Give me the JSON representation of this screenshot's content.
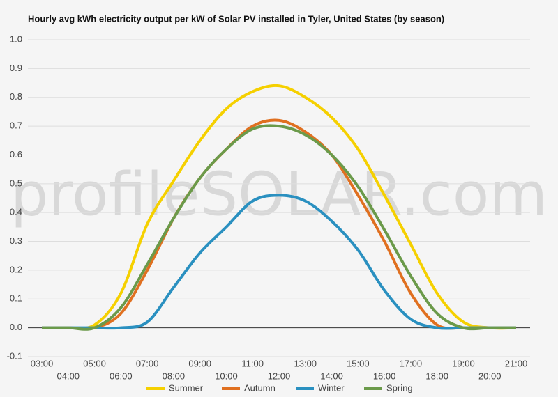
{
  "chart_data": {
    "type": "line",
    "title": "Hourly avg kWh electricity output per kW of Solar PV installed in Tyler, United States (by season)",
    "watermark": "profileSOLAR.com",
    "categories": [
      "03:00",
      "04:00",
      "05:00",
      "06:00",
      "07:00",
      "08:00",
      "09:00",
      "10:00",
      "11:00",
      "12:00",
      "13:00",
      "14:00",
      "15:00",
      "16:00",
      "17:00",
      "18:00",
      "19:00",
      "20:00",
      "21:00"
    ],
    "series": [
      {
        "name": "Summer",
        "color": "#f5d000",
        "values": [
          0,
          0,
          0.01,
          0.12,
          0.36,
          0.51,
          0.65,
          0.76,
          0.82,
          0.84,
          0.8,
          0.73,
          0.62,
          0.46,
          0.29,
          0.12,
          0.02,
          0,
          0
        ]
      },
      {
        "name": "Autumn",
        "color": "#e07020",
        "values": [
          0,
          0,
          0,
          0.05,
          0.2,
          0.38,
          0.52,
          0.62,
          0.7,
          0.72,
          0.68,
          0.6,
          0.46,
          0.3,
          0.12,
          0.01,
          0,
          0,
          0
        ]
      },
      {
        "name": "Winter",
        "color": "#2a90c0",
        "values": [
          0,
          0,
          0,
          0,
          0.02,
          0.14,
          0.26,
          0.35,
          0.44,
          0.46,
          0.44,
          0.37,
          0.27,
          0.13,
          0.03,
          0,
          0,
          0,
          0
        ]
      },
      {
        "name": "Spring",
        "color": "#6b9a4a",
        "values": [
          0,
          0,
          0,
          0.07,
          0.22,
          0.38,
          0.52,
          0.62,
          0.69,
          0.7,
          0.67,
          0.6,
          0.49,
          0.34,
          0.18,
          0.05,
          0,
          0,
          0
        ]
      }
    ],
    "ylim": [
      -0.1,
      1.0
    ],
    "yticks": [
      {
        "value": -0.1,
        "label": "-0.1"
      },
      {
        "value": 0,
        "label": "0.0"
      },
      0.1,
      0.2,
      0.3,
      0.4,
      0.5,
      0.6,
      0.7,
      0.8,
      0.9,
      {
        "value": 1,
        "label": "1.0"
      }
    ],
    "grid": true
  }
}
